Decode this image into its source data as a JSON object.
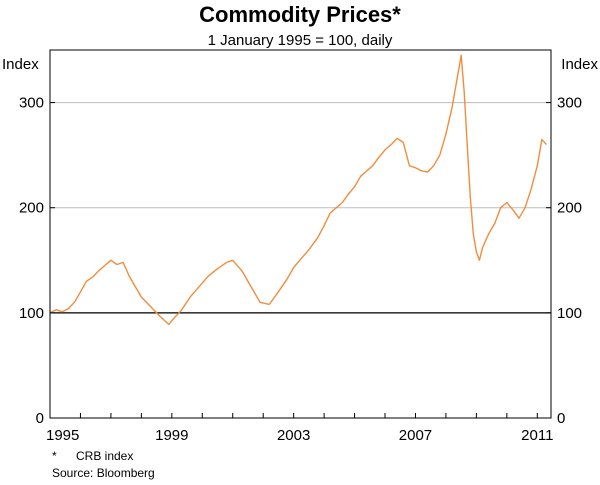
{
  "chart_data": {
    "type": "line",
    "title": "Commodity Prices*",
    "subtitle": "1 January 1995 = 100, daily",
    "ylabel_left": "Index",
    "ylabel_right": "Index",
    "ylim": [
      0,
      350
    ],
    "xlim": [
      1995,
      2011.45
    ],
    "y_ticks": [
      0,
      100,
      200,
      300
    ],
    "x_tick_labels": [
      "1995",
      "1999",
      "2003",
      "2007",
      "2011"
    ],
    "x_tick_values": [
      1995,
      1999,
      2003,
      2007,
      2011
    ],
    "gridlines": [
      100,
      200,
      300
    ],
    "reference_line": 100,
    "colors": {
      "series": "#f28c3c",
      "grid": "#bdbdbd",
      "frame": "#000000"
    },
    "series": [
      {
        "name": "CRB index",
        "x": [
          1995.0,
          1995.2,
          1995.4,
          1995.6,
          1995.8,
          1996.0,
          1996.2,
          1996.4,
          1996.6,
          1996.8,
          1997.0,
          1997.2,
          1997.4,
          1997.6,
          1997.8,
          1998.0,
          1998.3,
          1998.6,
          1998.9,
          1999.1,
          1999.3,
          1999.6,
          1999.9,
          2000.2,
          2000.5,
          2000.8,
          2001.0,
          2001.3,
          2001.6,
          2001.9,
          2002.2,
          2002.5,
          2002.8,
          2003.0,
          2003.2,
          2003.5,
          2003.8,
          2004.0,
          2004.2,
          2004.4,
          2004.6,
          2004.8,
          2005.0,
          2005.2,
          2005.4,
          2005.6,
          2005.8,
          2006.0,
          2006.2,
          2006.4,
          2006.6,
          2006.8,
          2007.0,
          2007.2,
          2007.4,
          2007.6,
          2007.8,
          2008.0,
          2008.2,
          2008.35,
          2008.5,
          2008.6,
          2008.7,
          2008.8,
          2008.9,
          2009.0,
          2009.1,
          2009.2,
          2009.4,
          2009.6,
          2009.8,
          2010.0,
          2010.2,
          2010.4,
          2010.6,
          2010.8,
          2011.0,
          2011.15,
          2011.3
        ],
        "values": [
          100,
          103,
          101,
          104,
          110,
          120,
          130,
          134,
          140,
          145,
          150,
          146,
          148,
          135,
          125,
          115,
          106,
          97,
          89,
          96,
          102,
          115,
          125,
          135,
          142,
          148,
          150,
          140,
          125,
          110,
          108,
          120,
          133,
          143,
          150,
          160,
          172,
          183,
          195,
          200,
          205,
          213,
          220,
          230,
          235,
          240,
          248,
          255,
          260,
          266,
          262,
          240,
          238,
          235,
          234,
          240,
          250,
          270,
          295,
          320,
          345,
          310,
          260,
          210,
          175,
          158,
          150,
          162,
          175,
          185,
          200,
          205,
          198,
          190,
          200,
          218,
          240,
          265,
          260
        ]
      }
    ],
    "footnote_marker": "*",
    "footnote_text": "CRB index",
    "source": "Source: Bloomberg"
  }
}
